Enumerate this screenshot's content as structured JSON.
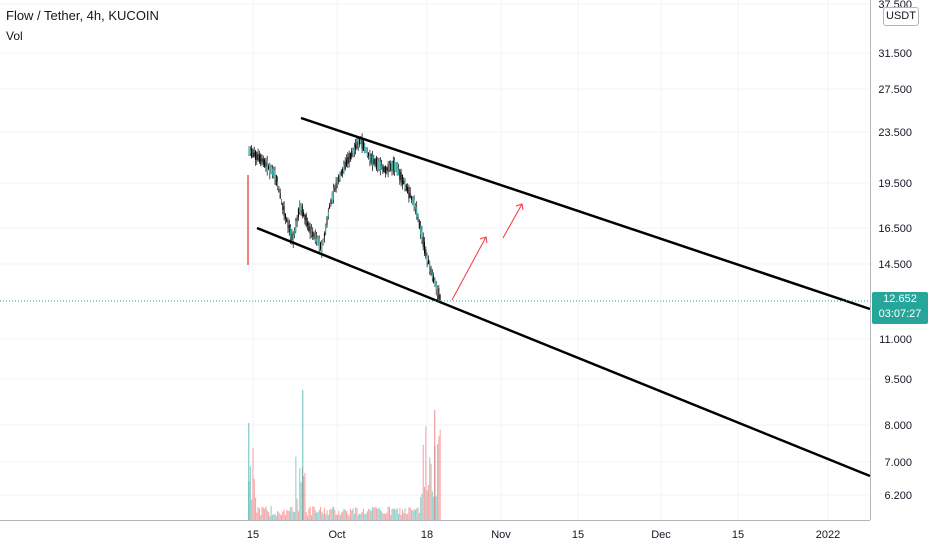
{
  "header": {
    "title": "Flow / Tether, 4h, KUCOIN",
    "volume_label": "Vol",
    "currency_badge": "USDT"
  },
  "price_axis": {
    "ticks": [
      "37.500",
      "31.500",
      "27.500",
      "23.500",
      "19.500",
      "16.500",
      "14.500",
      "11.000",
      "9.500",
      "8.000",
      "7.000",
      "6.200"
    ]
  },
  "time_axis": {
    "ticks": [
      "15",
      "Oct",
      "18",
      "Nov",
      "15",
      "Dec",
      "15",
      "2022"
    ]
  },
  "last_price": {
    "value": "12.652",
    "countdown": "03:07:27"
  },
  "colors": {
    "up": "#26a69a",
    "down": "#ef5350",
    "candle_body": "#000000",
    "trendline": "#000000",
    "arrow": "#f23645",
    "grid": "#f0f3fa",
    "dotted_price_line": "#26a69a"
  },
  "chart_data": {
    "type": "candlestick",
    "scale": "log",
    "symbol": "Flow / Tether",
    "interval": "4h",
    "exchange": "KUCOIN",
    "close_path": [
      {
        "x": "15",
        "y": 22.5
      },
      {
        "x": "Oct",
        "y": 16.5
      },
      {
        "x": "Oct",
        "y": 22.5
      },
      {
        "x": "18",
        "y": 12.65
      }
    ],
    "last_price": 12.652,
    "annotations": {
      "channel": "descending parallel channel",
      "arrows": "two upward arrows"
    },
    "volume_series": "Vol"
  }
}
